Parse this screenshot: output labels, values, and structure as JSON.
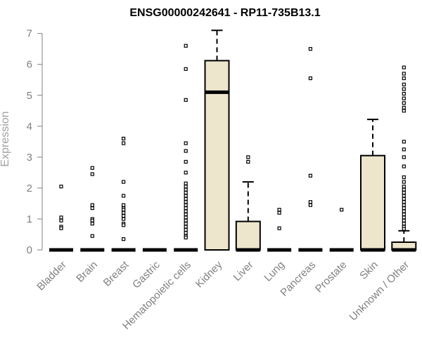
{
  "chart_data": {
    "type": "box",
    "title": "ENSG00000242641 - RP11-735B13.1",
    "xlabel": "",
    "ylabel": "Expression",
    "ylim": [
      0,
      7.1
    ],
    "yticks": [
      "0",
      "1",
      "2",
      "3",
      "4",
      "5",
      "6",
      "7"
    ],
    "box_fill": "#ede6cd",
    "categories": [
      "Bladder",
      "Brain",
      "Breast",
      "Gastric",
      "Hematopoietic cells",
      "Kidney",
      "Liver",
      "Lung",
      "Pancreas",
      "Prostate",
      "Skin",
      "Unknown / Other"
    ],
    "boxes": [
      {
        "q1": 0,
        "median": 0,
        "q3": 0,
        "whisker_low": 0,
        "whisker_high": 0,
        "outliers": [
          2.05,
          1.05,
          0.95,
          0.75,
          0.7
        ]
      },
      {
        "q1": 0,
        "median": 0,
        "q3": 0,
        "whisker_low": 0,
        "whisker_high": 0,
        "outliers": [
          2.65,
          2.45,
          1.45,
          1.35,
          1.0,
          0.95,
          0.85,
          0.45
        ]
      },
      {
        "q1": 0,
        "median": 0,
        "q3": 0,
        "whisker_low": 0,
        "whisker_high": 0,
        "outliers": [
          3.6,
          3.45,
          2.2,
          1.75,
          1.45,
          1.35,
          1.3,
          1.2,
          1.1,
          1.0,
          0.85,
          0.8,
          0.35
        ]
      },
      {
        "q1": 0,
        "median": 0,
        "q3": 0,
        "whisker_low": 0,
        "whisker_high": 0,
        "outliers": []
      },
      {
        "q1": 0,
        "median": 0,
        "q3": 0,
        "whisker_low": 0,
        "whisker_high": 0,
        "outliers": [
          6.6,
          5.85,
          4.85,
          3.45,
          3.2,
          2.85,
          2.5,
          2.15,
          2.05,
          1.95,
          1.85,
          1.75,
          1.65,
          1.55,
          1.45,
          1.35,
          1.25,
          1.15,
          1.05,
          0.95,
          0.85,
          0.75,
          0.65,
          0.55,
          0.45,
          0.4
        ]
      },
      {
        "q1": 0,
        "median": 5.1,
        "q3": 6.12,
        "whisker_low": 0,
        "whisker_high": 7.1,
        "outliers": []
      },
      {
        "q1": 0,
        "median": 0,
        "q3": 0.92,
        "whisker_low": 0,
        "whisker_high": 2.2,
        "outliers": [
          3.0,
          2.85
        ]
      },
      {
        "q1": 0,
        "median": 0,
        "q3": 0,
        "whisker_low": 0,
        "whisker_high": 0,
        "outliers": [
          1.3,
          1.2,
          0.7
        ]
      },
      {
        "q1": 0,
        "median": 0,
        "q3": 0,
        "whisker_low": 0,
        "whisker_high": 0,
        "outliers": [
          6.5,
          5.55,
          2.4,
          1.55,
          1.45
        ]
      },
      {
        "q1": 0,
        "median": 0,
        "q3": 0,
        "whisker_low": 0,
        "whisker_high": 0,
        "outliers": [
          1.3
        ]
      },
      {
        "q1": 0,
        "median": 0,
        "q3": 3.05,
        "whisker_low": 0,
        "whisker_high": 4.22,
        "outliers": []
      },
      {
        "q1": 0,
        "median": 0,
        "q3": 0.25,
        "whisker_low": 0,
        "whisker_high": 0.62,
        "outliers": [
          5.9,
          5.7,
          5.55,
          5.35,
          5.2,
          5.05,
          4.9,
          4.75,
          4.6,
          4.5,
          3.5,
          3.25,
          3.0,
          2.7,
          2.35,
          2.2,
          2.05,
          1.95,
          1.85,
          1.75,
          1.65,
          1.55,
          1.45,
          1.35,
          1.25,
          1.15,
          1.05,
          0.95,
          0.85,
          0.75,
          0.68
        ]
      }
    ]
  }
}
